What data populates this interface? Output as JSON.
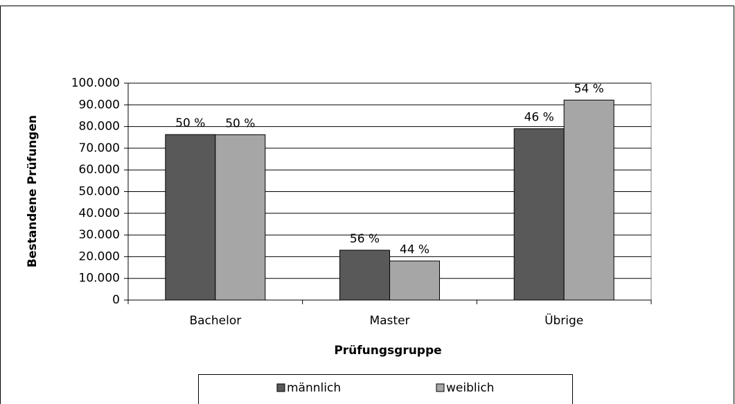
{
  "chart_data": {
    "type": "bar",
    "xlabel": "Prüfungsgruppe",
    "ylabel": "Bestandene Prüfungen",
    "categories": [
      "Bachelor",
      "Master",
      "Übrige"
    ],
    "series": [
      {
        "name": "männlich",
        "color": "#595959",
        "values": [
          76300,
          23000,
          79000
        ],
        "share_labels": [
          "50 %",
          "56 %",
          "46 %"
        ]
      },
      {
        "name": "weiblich",
        "color": "#a6a6a6",
        "values": [
          76200,
          18000,
          92200
        ],
        "share_labels": [
          "50 %",
          "44 %",
          "54 %"
        ]
      }
    ],
    "ylim": [
      0,
      100000
    ],
    "yticks": [
      0,
      {
        "value": 10000,
        "label": "10.000"
      },
      {
        "value": 20000,
        "label": "20.000"
      },
      {
        "value": 30000,
        "label": "30.000"
      },
      {
        "value": 40000,
        "label": "40.000"
      },
      {
        "value": 50000,
        "label": "50.000"
      },
      {
        "value": 60000,
        "label": "60.000"
      },
      {
        "value": 70000,
        "label": "70.000"
      },
      {
        "value": 80000,
        "label": "80.000"
      },
      {
        "value": 90000,
        "label": "90.000"
      },
      {
        "value": 100000,
        "label": "100.000"
      }
    ],
    "grid": true,
    "legend": "bottom"
  }
}
